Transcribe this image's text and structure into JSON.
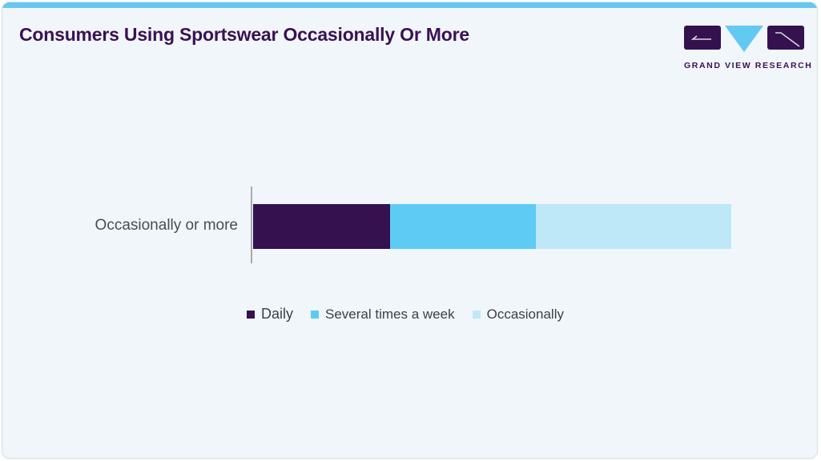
{
  "page": {
    "title": "Consumers Using Sportswear Occasionally Or More"
  },
  "logo": {
    "text": "GRAND VIEW RESEARCH"
  },
  "colors": {
    "top_accent": "#66c8f0",
    "title_text": "#3a1153",
    "card_background": "#f0f6fa",
    "axis_line": "#a9abae",
    "category_text": "#4b4b54",
    "legend_text": "#3e3e47",
    "daily": "#351150",
    "several_times_a_week": "#5ecbf5",
    "occasionally": "#bee8f8"
  },
  "chart_data": {
    "type": "bar",
    "orientation": "horizontal",
    "stacked": true,
    "title": "Consumers Using Sportswear Occasionally Or More",
    "categories": [
      "Occasionally or more"
    ],
    "series": [
      {
        "name": "Daily",
        "values": [
          28.6
        ],
        "color": "#351150"
      },
      {
        "name": "Several times a week",
        "values": [
          30.5
        ],
        "color": "#5ecbf5"
      },
      {
        "name": "Occasionally",
        "values": [
          40.9
        ],
        "color": "#bee8f8"
      }
    ],
    "xlabel": "",
    "ylabel": "",
    "xlim": [
      0,
      100
    ],
    "axis_ticks_visible": false,
    "grid": false,
    "legend_position": "bottom"
  },
  "category_label": "Occasionally or more",
  "legend": {
    "items": [
      {
        "label": "Daily",
        "color": "#351150"
      },
      {
        "label": "Several times a week",
        "color": "#5ecbf5"
      },
      {
        "label": "Occasionally",
        "color": "#bee8f8"
      }
    ]
  }
}
